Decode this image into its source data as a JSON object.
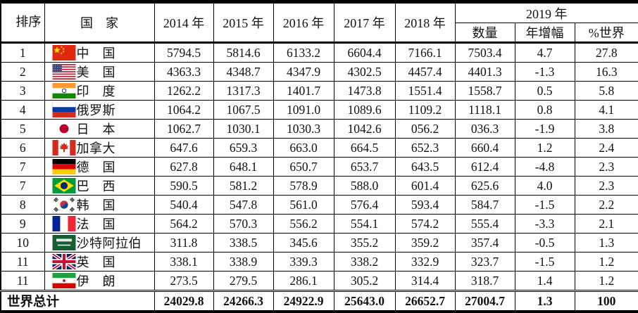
{
  "colors": {
    "border": "#000000",
    "text": "#111111",
    "background": "#ffffff"
  },
  "chart_data": {
    "type": "table",
    "header": {
      "rank": "排序",
      "country": "国　家",
      "years": [
        "2014 年",
        "2015 年",
        "2016 年",
        "2017 年",
        "2018 年"
      ],
      "year_2019": "2019 年",
      "sub_2019": [
        "数量",
        "年增幅",
        "%世界"
      ]
    },
    "rows": [
      {
        "rank": "1",
        "flag_icon": "china-flag-icon",
        "country": "中　国",
        "values": [
          "5794.5",
          "5814.6",
          "6133.2",
          "6604.4",
          "7166.1",
          "7503.4",
          "4.7",
          "27.8"
        ]
      },
      {
        "rank": "2",
        "flag_icon": "usa-flag-icon",
        "country": "美　国",
        "values": [
          "4363.3",
          "4348.7",
          "4347.9",
          "4302.5",
          "4457.4",
          "4401.3",
          "-1.3",
          "16.3"
        ]
      },
      {
        "rank": "3",
        "flag_icon": "india-flag-icon",
        "country": "印　度",
        "values": [
          "1262.2",
          "1317.3",
          "1401.7",
          "1473.8",
          "1551.4",
          "1558.7",
          "0.5",
          "5.8"
        ]
      },
      {
        "rank": "4",
        "flag_icon": "russia-flag-icon",
        "country": "俄罗斯",
        "values": [
          "1064.2",
          "1067.5",
          "1091.0",
          "1089.6",
          "1109.2",
          "1118.1",
          "0.8",
          "4.1"
        ]
      },
      {
        "rank": "5",
        "flag_icon": "japan-flag-icon",
        "country": "日　本",
        "values": [
          "1062.7",
          "1030.1",
          "1030.3",
          "1042.6",
          "056.2",
          "036.3",
          "-1.9",
          "3.8"
        ]
      },
      {
        "rank": "6",
        "flag_icon": "canada-flag-icon",
        "country": "加拿大",
        "values": [
          "647.6",
          "659.3",
          "663.0",
          "664.5",
          "652.3",
          "660.4",
          "1.2",
          "2.4"
        ]
      },
      {
        "rank": "7",
        "flag_icon": "germany-flag-icon",
        "country": "德　国",
        "values": [
          "627.8",
          "648.1",
          "650.7",
          "653.7",
          "643.5",
          "612.4",
          "-4.8",
          "2.3"
        ]
      },
      {
        "rank": "7",
        "flag_icon": "brazil-flag-icon",
        "country": "巴　西",
        "values": [
          "590.5",
          "581.2",
          "578.9",
          "588.0",
          "601.4",
          "625.6",
          "4.0",
          "2.3"
        ]
      },
      {
        "rank": "8",
        "flag_icon": "south-korea-flag-icon",
        "country": "韩　国",
        "values": [
          "540.4",
          "547.8",
          "561.0",
          "576.4",
          "593.4",
          "584.7",
          "-1.5",
          "2.2"
        ]
      },
      {
        "rank": "9",
        "flag_icon": "france-flag-icon",
        "country": "法　国",
        "values": [
          "564.2",
          "570.3",
          "556.2",
          "554.1",
          "574.2",
          "555.4",
          "-3.3",
          "2.1"
        ]
      },
      {
        "rank": "10",
        "flag_icon": "saudi-arabia-flag-icon",
        "country": "沙特阿拉伯",
        "values": [
          "311.8",
          "338.5",
          "345.6",
          "355.2",
          "359.2",
          "357.4",
          "-0.5",
          "1.3"
        ]
      },
      {
        "rank": "11",
        "flag_icon": "uk-flag-icon",
        "country": "英　国",
        "values": [
          "338.1",
          "338.9",
          "339.3",
          "338.2",
          "332.9",
          "323.7",
          "-1.5",
          "1.2"
        ]
      },
      {
        "rank": "11",
        "flag_icon": "iran-flag-icon",
        "country": "伊　朗",
        "values": [
          "273.5",
          "279.5",
          "286.1",
          "305.2",
          "314.4",
          "318.7",
          "1.4",
          "1.2"
        ]
      }
    ],
    "total": {
      "label": "世界总计",
      "values": [
        "24029.8",
        "24266.3",
        "24922.9",
        "25643.0",
        "26652.7",
        "27004.7",
        "1.3",
        "100"
      ]
    }
  }
}
